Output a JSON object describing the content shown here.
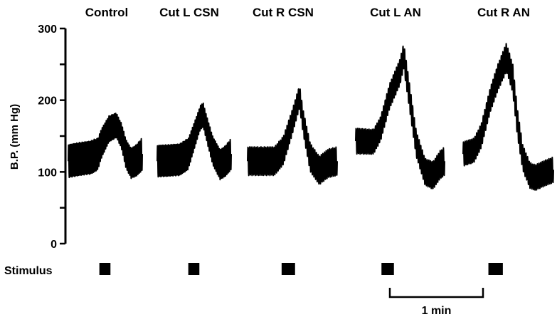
{
  "chart_data": {
    "type": "line",
    "ylabel": "B.P. (mm Hg)",
    "ylim": [
      0,
      300
    ],
    "yticks": [
      0,
      100,
      200,
      300
    ],
    "yticks_minor": [
      50,
      150,
      250
    ],
    "grid": false,
    "stimulus_label": "Stimulus",
    "scale_bar_label": "1 min",
    "panels": [
      {
        "title": "Control",
        "t_range": [
          0,
          1
        ],
        "stimulus": [
          0.42,
          0.57
        ],
        "mean": [
          [
            0,
            115
          ],
          [
            0.15,
            118
          ],
          [
            0.3,
            120
          ],
          [
            0.4,
            125
          ],
          [
            0.45,
            140
          ],
          [
            0.55,
            160
          ],
          [
            0.65,
            165
          ],
          [
            0.72,
            150
          ],
          [
            0.78,
            125
          ],
          [
            0.85,
            112
          ],
          [
            0.92,
            116
          ],
          [
            1,
            125
          ]
        ],
        "amp": [
          [
            0,
            23
          ],
          [
            0.35,
            23
          ],
          [
            0.55,
            18
          ],
          [
            0.7,
            17
          ],
          [
            0.78,
            20
          ],
          [
            1,
            23
          ]
        ]
      },
      {
        "title": "Cut L CSN",
        "t_range": [
          0,
          1
        ],
        "stimulus": [
          0.42,
          0.57
        ],
        "mean": [
          [
            0,
            115
          ],
          [
            0.3,
            117
          ],
          [
            0.42,
            125
          ],
          [
            0.5,
            150
          ],
          [
            0.58,
            175
          ],
          [
            0.62,
            180
          ],
          [
            0.67,
            160
          ],
          [
            0.75,
            130
          ],
          [
            0.85,
            110
          ],
          [
            0.92,
            115
          ],
          [
            1,
            125
          ]
        ],
        "amp": [
          [
            0,
            22
          ],
          [
            0.4,
            22
          ],
          [
            0.55,
            17
          ],
          [
            0.65,
            17
          ],
          [
            0.75,
            20
          ],
          [
            1,
            22
          ]
        ]
      },
      {
        "title": "Cut R CSN",
        "t_range": [
          0,
          1
        ],
        "stimulus": [
          0.38,
          0.53
        ],
        "mean": [
          [
            0,
            115
          ],
          [
            0.3,
            115
          ],
          [
            0.4,
            130
          ],
          [
            0.5,
            170
          ],
          [
            0.58,
            205
          ],
          [
            0.62,
            170
          ],
          [
            0.7,
            120
          ],
          [
            0.8,
            102
          ],
          [
            0.9,
            112
          ],
          [
            1,
            115
          ]
        ],
        "amp": [
          [
            0,
            20
          ],
          [
            0.4,
            20
          ],
          [
            0.52,
            17
          ],
          [
            0.6,
            16
          ],
          [
            0.7,
            20
          ],
          [
            1,
            20
          ]
        ]
      },
      {
        "title": "Cut L AN",
        "t_range": [
          0,
          1
        ],
        "stimulus": [
          0.29,
          0.43
        ],
        "mean": [
          [
            0,
            143
          ],
          [
            0.2,
            142
          ],
          [
            0.28,
            160
          ],
          [
            0.38,
            205
          ],
          [
            0.5,
            240
          ],
          [
            0.54,
            262
          ],
          [
            0.6,
            210
          ],
          [
            0.68,
            140
          ],
          [
            0.78,
            100
          ],
          [
            0.87,
            95
          ],
          [
            0.95,
            110
          ],
          [
            1,
            115
          ]
        ],
        "amp": [
          [
            0,
            18
          ],
          [
            0.3,
            17
          ],
          [
            0.45,
            18
          ],
          [
            0.55,
            18
          ],
          [
            0.65,
            18
          ],
          [
            1,
            20
          ]
        ]
      },
      {
        "title": "Cut R AN",
        "t_range": [
          0,
          1
        ],
        "stimulus": [
          0.28,
          0.44
        ],
        "mean": [
          [
            0,
            125
          ],
          [
            0.12,
            130
          ],
          [
            0.2,
            150
          ],
          [
            0.3,
            200
          ],
          [
            0.38,
            230
          ],
          [
            0.48,
            260
          ],
          [
            0.55,
            230
          ],
          [
            0.6,
            170
          ],
          [
            0.66,
            120
          ],
          [
            0.74,
            95
          ],
          [
            0.8,
            92
          ],
          [
            0.9,
            98
          ],
          [
            1,
            103
          ]
        ],
        "amp": [
          [
            0,
            17
          ],
          [
            0.3,
            17
          ],
          [
            0.45,
            20
          ],
          [
            0.55,
            20
          ],
          [
            0.65,
            18
          ],
          [
            1,
            18
          ]
        ]
      }
    ]
  }
}
